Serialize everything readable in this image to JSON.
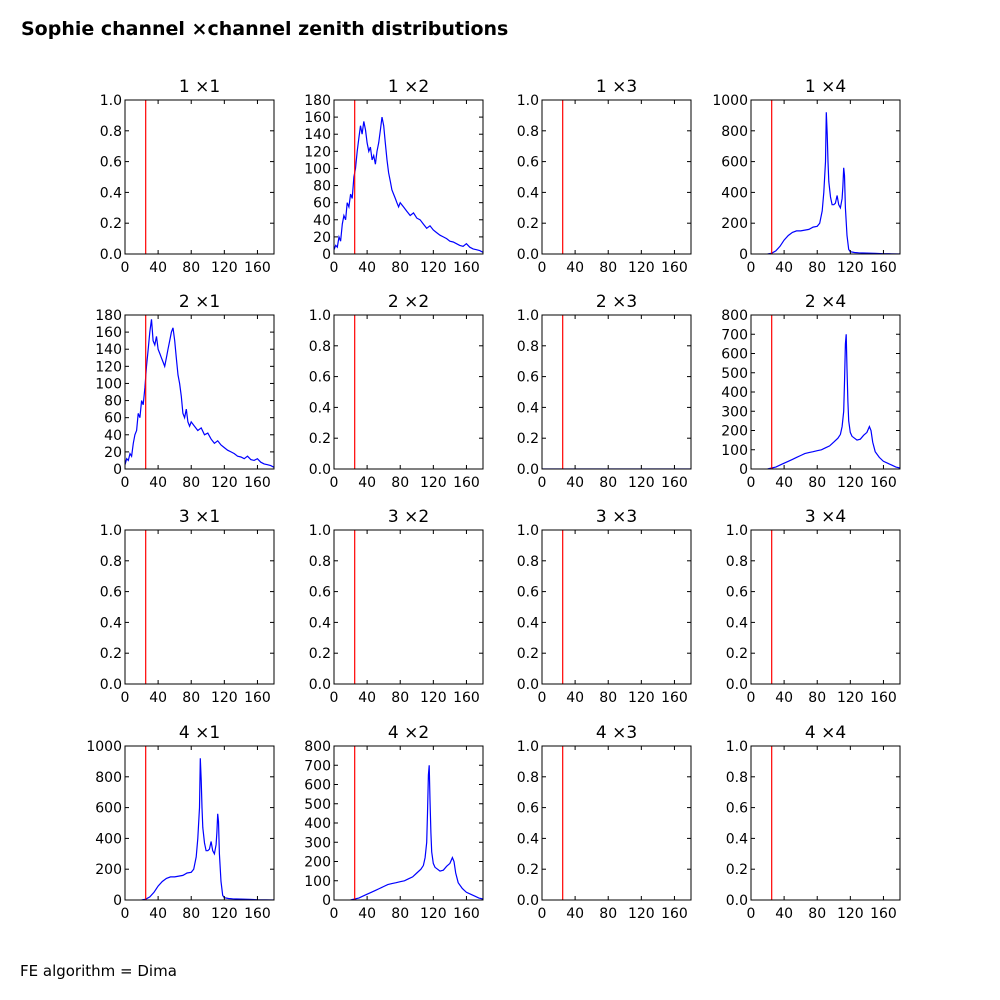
{
  "figure": {
    "title": "Sophie channel ×channel zenith distributions",
    "footer": "FE algorithm = Dima"
  },
  "chart_data": [
    {
      "type": "line",
      "title": "1 ×1",
      "xticks": [
        "0",
        "40",
        "80",
        "120",
        "160"
      ],
      "xlim": [
        0,
        180
      ],
      "ylim": [
        0,
        1
      ],
      "yticks": [
        "0.0",
        "0.2",
        "0.4",
        "0.6",
        "0.8",
        "1.0"
      ],
      "cut_x": 25,
      "series": []
    },
    {
      "type": "line",
      "title": "1 ×2",
      "xticks": [
        "0",
        "40",
        "80",
        "120",
        "160"
      ],
      "xlim": [
        0,
        180
      ],
      "ylim": [
        0,
        180
      ],
      "yticks": [
        "0",
        "20",
        "40",
        "60",
        "80",
        "100",
        "120",
        "140",
        "160",
        "180"
      ],
      "cut_x": 25,
      "series": [
        {
          "x": [
            0,
            2,
            4,
            6,
            8,
            10,
            12,
            14,
            16,
            18,
            20,
            22,
            24,
            26,
            28,
            30,
            32,
            34,
            36,
            38,
            40,
            42,
            44,
            46,
            48,
            50,
            52,
            54,
            56,
            58,
            60,
            62,
            64,
            66,
            68,
            70,
            72,
            74,
            76,
            78,
            80,
            84,
            88,
            92,
            96,
            100,
            104,
            108,
            112,
            116,
            120,
            124,
            128,
            132,
            136,
            140,
            144,
            148,
            152,
            156,
            160,
            164,
            168,
            172,
            176,
            180
          ],
          "y": [
            5,
            10,
            8,
            20,
            15,
            35,
            45,
            40,
            60,
            55,
            70,
            65,
            90,
            100,
            120,
            135,
            150,
            140,
            155,
            145,
            130,
            120,
            125,
            110,
            115,
            105,
            120,
            130,
            145,
            160,
            150,
            130,
            110,
            95,
            85,
            75,
            70,
            65,
            60,
            55,
            60,
            55,
            50,
            45,
            48,
            42,
            40,
            35,
            30,
            33,
            28,
            25,
            22,
            20,
            18,
            15,
            14,
            12,
            10,
            9,
            12,
            8,
            6,
            5,
            4,
            2
          ]
        }
      ]
    },
    {
      "type": "line",
      "title": "1 ×3",
      "xticks": [
        "0",
        "40",
        "80",
        "120",
        "160"
      ],
      "xlim": [
        0,
        180
      ],
      "ylim": [
        0,
        1
      ],
      "yticks": [
        "0.0",
        "0.2",
        "0.4",
        "0.6",
        "0.8",
        "1.0"
      ],
      "cut_x": 25,
      "series": []
    },
    {
      "type": "line",
      "title": "1 ×4",
      "xticks": [
        "0",
        "40",
        "80",
        "120",
        "160"
      ],
      "xlim": [
        0,
        180
      ],
      "ylim": [
        0,
        1000
      ],
      "yticks": [
        "0",
        "200",
        "400",
        "600",
        "800",
        "1000"
      ],
      "cut_x": 25,
      "series": [
        {
          "x": [
            20,
            25,
            30,
            35,
            40,
            45,
            50,
            55,
            60,
            65,
            70,
            75,
            80,
            83,
            86,
            88,
            90,
            91,
            92,
            93,
            94,
            96,
            98,
            100,
            102,
            104,
            106,
            108,
            110,
            111,
            112,
            113,
            114,
            116,
            118,
            120,
            125,
            130,
            140,
            150,
            160,
            170,
            180
          ],
          "y": [
            0,
            5,
            20,
            50,
            90,
            120,
            140,
            150,
            150,
            155,
            160,
            175,
            180,
            200,
            280,
            400,
            600,
            920,
            780,
            600,
            470,
            370,
            320,
            320,
            330,
            380,
            320,
            300,
            360,
            440,
            560,
            510,
            300,
            120,
            30,
            15,
            10,
            8,
            6,
            4,
            2,
            1,
            0
          ]
        }
      ]
    },
    {
      "type": "line",
      "title": "2 ×1",
      "xticks": [
        "0",
        "40",
        "80",
        "120",
        "160"
      ],
      "xlim": [
        0,
        180
      ],
      "ylim": [
        0,
        180
      ],
      "yticks": [
        "0",
        "20",
        "40",
        "60",
        "80",
        "100",
        "120",
        "140",
        "160",
        "180"
      ],
      "cut_x": 25,
      "series": [
        {
          "x": [
            0,
            2,
            4,
            6,
            8,
            10,
            12,
            14,
            16,
            18,
            20,
            22,
            24,
            26,
            28,
            30,
            32,
            34,
            36,
            38,
            40,
            42,
            44,
            46,
            48,
            50,
            52,
            54,
            56,
            58,
            60,
            62,
            64,
            66,
            68,
            70,
            72,
            74,
            76,
            78,
            80,
            84,
            88,
            92,
            96,
            100,
            104,
            108,
            112,
            116,
            120,
            124,
            128,
            132,
            136,
            140,
            144,
            148,
            152,
            156,
            160,
            164,
            168,
            172,
            176,
            180
          ],
          "y": [
            5,
            12,
            10,
            18,
            15,
            30,
            40,
            45,
            65,
            60,
            80,
            75,
            95,
            120,
            140,
            160,
            175,
            150,
            145,
            155,
            140,
            135,
            130,
            125,
            120,
            130,
            140,
            150,
            160,
            165,
            150,
            130,
            110,
            100,
            85,
            65,
            60,
            70,
            55,
            50,
            55,
            50,
            45,
            48,
            40,
            42,
            35,
            30,
            33,
            28,
            25,
            22,
            20,
            18,
            15,
            14,
            12,
            15,
            11,
            10,
            12,
            8,
            6,
            5,
            4,
            2
          ]
        }
      ]
    },
    {
      "type": "line",
      "title": "2 ×2",
      "xticks": [
        "0",
        "40",
        "80",
        "120",
        "160"
      ],
      "xlim": [
        0,
        180
      ],
      "ylim": [
        0,
        1
      ],
      "yticks": [
        "0.0",
        "0.2",
        "0.4",
        "0.6",
        "0.8",
        "1.0"
      ],
      "cut_x": 25,
      "series": []
    },
    {
      "type": "line",
      "title": "2 ×3",
      "xticks": [
        "0",
        "40",
        "80",
        "120",
        "160"
      ],
      "xlim": [
        0,
        180
      ],
      "ylim": [
        0,
        1
      ],
      "yticks": [
        "0.0",
        "0.2",
        "0.4",
        "0.6",
        "0.8",
        "1.0"
      ],
      "cut_x": 25,
      "series": [
        {
          "x": [
            0,
            180
          ],
          "y": [
            0,
            0
          ]
        }
      ]
    },
    {
      "type": "line",
      "title": "2 ×4",
      "xticks": [
        "0",
        "40",
        "80",
        "120",
        "160"
      ],
      "xlim": [
        0,
        180
      ],
      "ylim": [
        0,
        800
      ],
      "yticks": [
        "0",
        "100",
        "200",
        "300",
        "400",
        "500",
        "600",
        "700",
        "800"
      ],
      "cut_x": 25,
      "series": [
        {
          "x": [
            20,
            25,
            30,
            35,
            40,
            45,
            50,
            55,
            60,
            65,
            70,
            75,
            80,
            85,
            90,
            95,
            100,
            105,
            108,
            110,
            112,
            113,
            114,
            115,
            116,
            117,
            118,
            120,
            122,
            125,
            128,
            132,
            136,
            140,
            143,
            145,
            147,
            150,
            155,
            160,
            165,
            170,
            175,
            180
          ],
          "y": [
            0,
            5,
            10,
            20,
            30,
            40,
            50,
            60,
            70,
            80,
            85,
            90,
            95,
            100,
            110,
            120,
            140,
            160,
            180,
            220,
            300,
            450,
            650,
            700,
            520,
            350,
            250,
            190,
            170,
            160,
            150,
            155,
            175,
            190,
            220,
            200,
            140,
            90,
            60,
            40,
            30,
            20,
            10,
            5
          ]
        }
      ]
    },
    {
      "type": "line",
      "title": "3 ×1",
      "xticks": [
        "0",
        "40",
        "80",
        "120",
        "160"
      ],
      "xlim": [
        0,
        180
      ],
      "ylim": [
        0,
        1
      ],
      "yticks": [
        "0.0",
        "0.2",
        "0.4",
        "0.6",
        "0.8",
        "1.0"
      ],
      "cut_x": 25,
      "series": []
    },
    {
      "type": "line",
      "title": "3 ×2",
      "xticks": [
        "0",
        "40",
        "80",
        "120",
        "160"
      ],
      "xlim": [
        0,
        180
      ],
      "ylim": [
        0,
        1
      ],
      "yticks": [
        "0.0",
        "0.2",
        "0.4",
        "0.6",
        "0.8",
        "1.0"
      ],
      "cut_x": 25,
      "series": []
    },
    {
      "type": "line",
      "title": "3 ×3",
      "xticks": [
        "0",
        "40",
        "80",
        "120",
        "160"
      ],
      "xlim": [
        0,
        180
      ],
      "ylim": [
        0,
        1
      ],
      "yticks": [
        "0.0",
        "0.2",
        "0.4",
        "0.6",
        "0.8",
        "1.0"
      ],
      "cut_x": 25,
      "series": []
    },
    {
      "type": "line",
      "title": "3 ×4",
      "xticks": [
        "0",
        "40",
        "80",
        "120",
        "160"
      ],
      "xlim": [
        0,
        180
      ],
      "ylim": [
        0,
        1
      ],
      "yticks": [
        "0.0",
        "0.2",
        "0.4",
        "0.6",
        "0.8",
        "1.0"
      ],
      "cut_x": 25,
      "series": []
    },
    {
      "type": "line",
      "title": "4 ×1",
      "xticks": [
        "0",
        "40",
        "80",
        "120",
        "160"
      ],
      "xlim": [
        0,
        180
      ],
      "ylim": [
        0,
        1000
      ],
      "yticks": [
        "0",
        "200",
        "400",
        "600",
        "800",
        "1000"
      ],
      "cut_x": 25,
      "series": [
        {
          "x": [
            20,
            25,
            30,
            35,
            40,
            45,
            50,
            55,
            60,
            65,
            70,
            75,
            80,
            83,
            86,
            88,
            90,
            91,
            92,
            93,
            94,
            96,
            98,
            100,
            102,
            104,
            106,
            108,
            110,
            111,
            112,
            113,
            114,
            116,
            118,
            120,
            125,
            130,
            140,
            150,
            160,
            170,
            180
          ],
          "y": [
            0,
            5,
            20,
            50,
            90,
            120,
            140,
            150,
            150,
            155,
            160,
            175,
            180,
            200,
            280,
            400,
            600,
            920,
            780,
            600,
            470,
            370,
            320,
            320,
            330,
            380,
            320,
            300,
            360,
            440,
            560,
            510,
            300,
            120,
            30,
            15,
            10,
            8,
            6,
            4,
            2,
            1,
            0
          ]
        }
      ]
    },
    {
      "type": "line",
      "title": "4 ×2",
      "xticks": [
        "0",
        "40",
        "80",
        "120",
        "160"
      ],
      "xlim": [
        0,
        180
      ],
      "ylim": [
        0,
        800
      ],
      "yticks": [
        "0",
        "100",
        "200",
        "300",
        "400",
        "500",
        "600",
        "700",
        "800"
      ],
      "cut_x": 25,
      "series": [
        {
          "x": [
            20,
            25,
            30,
            35,
            40,
            45,
            50,
            55,
            60,
            65,
            70,
            75,
            80,
            85,
            90,
            95,
            100,
            105,
            108,
            110,
            112,
            113,
            114,
            115,
            116,
            117,
            118,
            120,
            122,
            125,
            128,
            132,
            136,
            140,
            143,
            145,
            147,
            150,
            155,
            160,
            165,
            170,
            175,
            180
          ],
          "y": [
            0,
            5,
            10,
            20,
            30,
            40,
            50,
            60,
            70,
            80,
            85,
            90,
            95,
            100,
            110,
            120,
            140,
            160,
            180,
            220,
            300,
            450,
            650,
            700,
            520,
            350,
            250,
            190,
            170,
            160,
            150,
            155,
            175,
            190,
            220,
            200,
            140,
            90,
            60,
            40,
            30,
            20,
            10,
            5
          ]
        }
      ]
    },
    {
      "type": "line",
      "title": "4 ×3",
      "xticks": [
        "0",
        "40",
        "80",
        "120",
        "160"
      ],
      "xlim": [
        0,
        180
      ],
      "ylim": [
        0,
        1
      ],
      "yticks": [
        "0.0",
        "0.2",
        "0.4",
        "0.6",
        "0.8",
        "1.0"
      ],
      "cut_x": 25,
      "series": []
    },
    {
      "type": "line",
      "title": "4 ×4",
      "xticks": [
        "0",
        "40",
        "80",
        "120",
        "160"
      ],
      "xlim": [
        0,
        180
      ],
      "ylim": [
        0,
        1
      ],
      "yticks": [
        "0.0",
        "0.2",
        "0.4",
        "0.6",
        "0.8",
        "1.0"
      ],
      "cut_x": 25,
      "series": []
    }
  ],
  "colors": {
    "series": "#0000ff",
    "cut_line": "#ff0000",
    "axes": "#000000"
  }
}
